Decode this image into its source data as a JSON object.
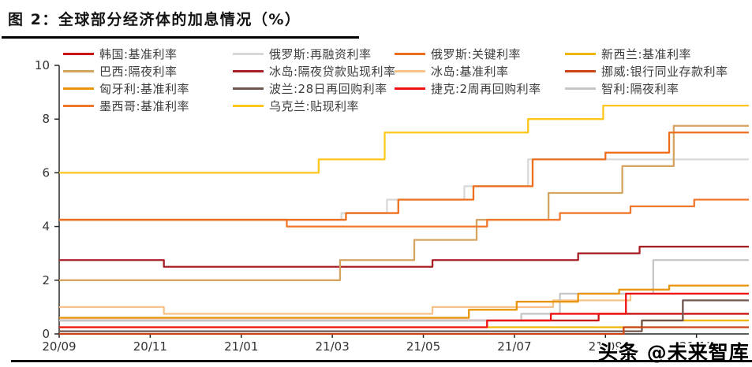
{
  "title": "图 2：全球部分经济体的加息情况（%）",
  "watermark": {
    "text": "头条 @未来智库"
  },
  "chart_data": {
    "type": "line",
    "subtype": "step-after",
    "title": "全球部分经济体的加息情况",
    "unit": "%",
    "grid": false,
    "legend_position": "top",
    "x_axis": {
      "tick_labels": [
        "20/09",
        "20/11",
        "21/01",
        "21/03",
        "21/05",
        "21/07",
        "21/09",
        "21/11"
      ],
      "tick_months": [
        0,
        2,
        4,
        6,
        8,
        10,
        12,
        14
      ],
      "range_months": [
        0,
        15.15
      ]
    },
    "y_axis": {
      "ticks": [
        0,
        2,
        4,
        6,
        8,
        10
      ],
      "range": [
        0,
        10
      ]
    },
    "series": [
      {
        "id": "korea",
        "label": "韩国:基准利率",
        "color": "#C91414",
        "steps": [
          [
            0,
            0.5
          ],
          [
            11.85,
            0.75
          ]
        ]
      },
      {
        "id": "russia_refi",
        "label": "俄罗斯:再融资利率",
        "color": "#D8D8D8",
        "steps": [
          [
            0,
            4.25
          ],
          [
            6.2,
            4.5
          ],
          [
            7.2,
            5.0
          ],
          [
            8.9,
            5.5
          ],
          [
            10.3,
            6.5
          ]
        ]
      },
      {
        "id": "russia_key",
        "label": "俄罗斯:关键利率",
        "color": "#ED6F1E",
        "steps": [
          [
            0,
            4.25
          ],
          [
            6.3,
            4.5
          ],
          [
            7.45,
            5.0
          ],
          [
            9.1,
            5.5
          ],
          [
            10.4,
            6.5
          ],
          [
            12.0,
            6.75
          ],
          [
            13.4,
            7.5
          ]
        ]
      },
      {
        "id": "new_zealand",
        "label": "新西兰:基准利率",
        "color": "#EFB700",
        "steps": [
          [
            0,
            0.25
          ],
          [
            12.8,
            0.5
          ]
        ]
      },
      {
        "id": "brazil",
        "label": "巴西:隔夜利率",
        "color": "#D6A461",
        "steps": [
          [
            0,
            2.0
          ],
          [
            6.17,
            2.75
          ],
          [
            7.8,
            3.5
          ],
          [
            9.17,
            4.25
          ],
          [
            10.75,
            5.25
          ],
          [
            12.37,
            6.25
          ],
          [
            13.5,
            7.75
          ]
        ]
      },
      {
        "id": "iceland_discount",
        "label": "冰岛:隔夜贷款贴现利率",
        "color": "#A72025",
        "steps": [
          [
            0,
            2.75
          ],
          [
            2.3,
            2.5
          ],
          [
            8.2,
            2.75
          ],
          [
            11.4,
            3.0
          ],
          [
            12.75,
            3.25
          ]
        ]
      },
      {
        "id": "iceland_key",
        "label": "冰岛:基准利率",
        "color": "#F7C38A",
        "steps": [
          [
            0,
            1.0
          ],
          [
            2.3,
            0.75
          ],
          [
            8.2,
            1.0
          ],
          [
            10.85,
            1.25
          ],
          [
            12.55,
            1.5
          ]
        ]
      },
      {
        "id": "norway",
        "label": "挪威:银行同业存款利率",
        "color": "#CC4415",
        "steps": [
          [
            0,
            0.0
          ],
          [
            12.4,
            0.25
          ]
        ]
      },
      {
        "id": "hungary",
        "label": "匈牙利:基准利率",
        "color": "#E8940C",
        "steps": [
          [
            0,
            0.6
          ],
          [
            9.0,
            0.9
          ],
          [
            10.05,
            1.2
          ],
          [
            11.4,
            1.5
          ],
          [
            12.3,
            1.65
          ],
          [
            13.4,
            1.8
          ]
        ]
      },
      {
        "id": "poland",
        "label": "波兰:28日再回购利率",
        "color": "#6F5750",
        "steps": [
          [
            0,
            0.1
          ],
          [
            12.8,
            0.5
          ],
          [
            13.7,
            1.25
          ]
        ]
      },
      {
        "id": "czech",
        "label": "捷克:2周再回购利率",
        "color": "#F01212",
        "steps": [
          [
            0,
            0.25
          ],
          [
            9.4,
            0.5
          ],
          [
            10.8,
            0.75
          ],
          [
            12.45,
            1.5
          ]
        ]
      },
      {
        "id": "chile",
        "label": "智利:隔夜利率",
        "color": "#C6C6C6",
        "steps": [
          [
            0,
            0.5
          ],
          [
            10.15,
            0.75
          ],
          [
            11.0,
            1.5
          ],
          [
            13.05,
            2.75
          ]
        ]
      },
      {
        "id": "mexico",
        "label": "墨西哥:基准利率",
        "color": "#F0782D",
        "steps": [
          [
            0,
            4.25
          ],
          [
            5.0,
            4.0
          ],
          [
            9.4,
            4.25
          ],
          [
            11.0,
            4.5
          ],
          [
            12.55,
            4.75
          ],
          [
            13.95,
            5.0
          ]
        ]
      },
      {
        "id": "ukraine",
        "label": "乌克兰:贴现利率",
        "color": "#FFC61B",
        "steps": [
          [
            0,
            6.0
          ],
          [
            5.7,
            6.5
          ],
          [
            7.15,
            7.5
          ],
          [
            10.3,
            8.0
          ],
          [
            11.95,
            8.5
          ]
        ]
      }
    ],
    "legend_columns": [
      [
        "korea",
        "brazil",
        "hungary",
        "mexico"
      ],
      [
        "russia_refi",
        "iceland_discount",
        "poland",
        "ukraine"
      ],
      [
        "russia_key",
        "iceland_key",
        "czech"
      ],
      [
        "new_zealand",
        "norway",
        "chile"
      ]
    ],
    "draw_order": [
      "korea",
      "new_zealand",
      "russia_refi",
      "iceland_key",
      "chile",
      "hungary",
      "poland",
      "norway",
      "czech",
      "iceland_discount",
      "brazil",
      "mexico",
      "russia_key",
      "ukraine"
    ]
  }
}
